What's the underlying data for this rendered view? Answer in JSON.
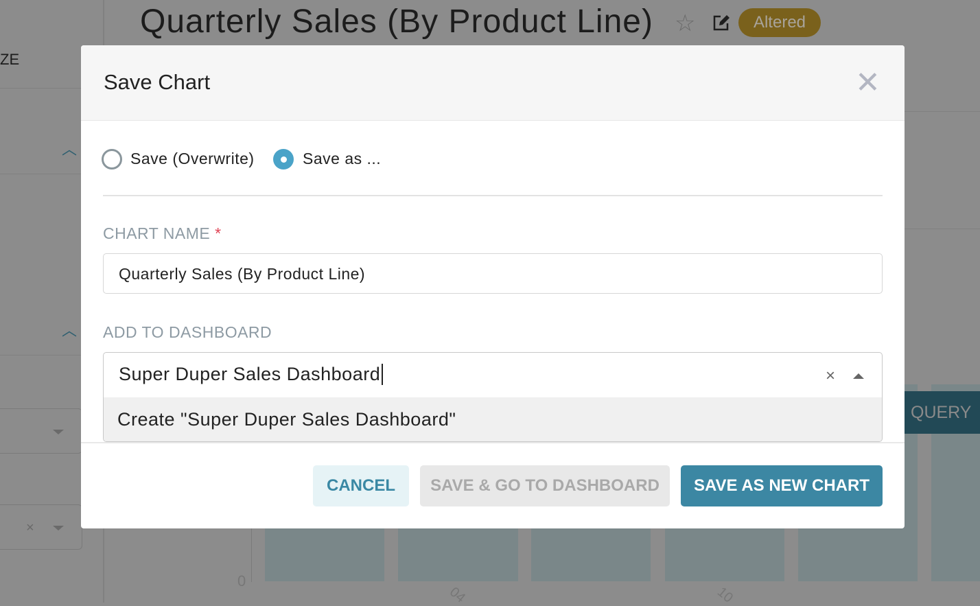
{
  "background": {
    "chart_title": "Quarterly Sales (By Product Line)",
    "status_badge": "Altered",
    "badge_color": "#7a611c",
    "left_panel_label": "ZE",
    "query_button": "QUERY",
    "axis_zero": "0",
    "x_ticks": [
      "04",
      "10"
    ]
  },
  "modal": {
    "title": "Save Chart",
    "radio_options": [
      {
        "label": "Save (Overwrite)",
        "selected": false
      },
      {
        "label": "Save as ...",
        "selected": true
      }
    ],
    "chart_name_label": "CHART NAME",
    "required_mark": "*",
    "chart_name_value": "Quarterly Sales (By Product Line)",
    "dashboard_label": "ADD TO DASHBOARD",
    "dashboard_value": "Super Duper Sales Dashboard",
    "dashboard_option": "Create \"Super Duper Sales Dashboard\"",
    "buttons": {
      "cancel": "CANCEL",
      "save_go": "SAVE & GO TO DASHBOARD",
      "save_new": "SAVE AS NEW CHART"
    },
    "accent_color": "#3c87a3"
  }
}
